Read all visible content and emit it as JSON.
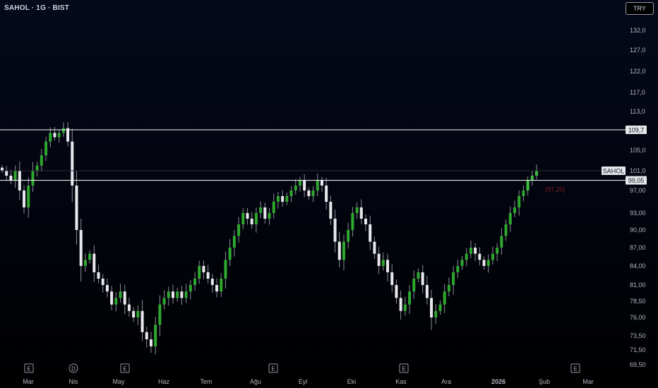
{
  "header": {
    "symbol_title": "SAHOL · 1G · BIST",
    "currency_button": "TRY"
  },
  "colors": {
    "up": "#2ea82e",
    "up_bright": "#3cc03c",
    "down": "#e8e8ec",
    "wick": "#8a8e99",
    "hline": "#ffffff",
    "axis_text": "#b2b5be",
    "tag_bg": "#e6e7ea",
    "ghost_label": "#7a1f2c"
  },
  "chart_data": {
    "type": "candlestick",
    "symbol": "SAHOL",
    "interval": "1G",
    "exchange": "BIST",
    "currency": "TRY",
    "y_ticks": [
      "69,50",
      "71,50",
      "73,50",
      "76,00",
      "78,50",
      "81,00",
      "84,00",
      "87,00",
      "90,00",
      "93,00",
      "97,00",
      "101,0",
      "105,0",
      "109,7",
      "113,0",
      "117,0",
      "122,0",
      "127,0",
      "132,0"
    ],
    "x_ticks": [
      "Mar",
      "Nis",
      "May",
      "Haz",
      "Tem",
      "Ağu",
      "Eyl",
      "Eki",
      "Kas",
      "Ara",
      "2026",
      "Şub",
      "Mar"
    ],
    "event_markers": [
      {
        "letter": "E",
        "at": "Mar"
      },
      {
        "letter": "D",
        "at": "Nis"
      },
      {
        "letter": "E",
        "at": "May"
      },
      {
        "letter": "E",
        "at": "Ağu"
      },
      {
        "letter": "E",
        "at": "Kas"
      },
      {
        "letter": "E",
        "at": "Şub"
      }
    ],
    "horizontal_lines": [
      {
        "price": 109.7,
        "label": "109,7"
      },
      {
        "price": 99.05,
        "label": "99,05"
      }
    ],
    "price_tags": [
      {
        "name": "SAHOL",
        "price": 101.0
      },
      {
        "name": "ghost",
        "label": "(97,20)",
        "price": 97.2
      }
    ],
    "closes": [
      101,
      100,
      99,
      101,
      97,
      94,
      98,
      101,
      102,
      104,
      107,
      109,
      108,
      109,
      110,
      107,
      98,
      90,
      84,
      85,
      86,
      83,
      82,
      81,
      80,
      78,
      79,
      80,
      78,
      77,
      76,
      77,
      74,
      73,
      72,
      75,
      78,
      79,
      80,
      79,
      80,
      79,
      80,
      81,
      82,
      84,
      83,
      82,
      81,
      80,
      82,
      85,
      87,
      89,
      91,
      93,
      92,
      91,
      93,
      94,
      92,
      93,
      95,
      96,
      95,
      96,
      97,
      98,
      99,
      97,
      96,
      97,
      99,
      98,
      95,
      92,
      88,
      85,
      88,
      90,
      93,
      94,
      92,
      91,
      88,
      86,
      84,
      85,
      83,
      81,
      79,
      77,
      78,
      80,
      82,
      83,
      81,
      79,
      76,
      77,
      78,
      80,
      81,
      83,
      84,
      85,
      86,
      87,
      86,
      85,
      84,
      85,
      86,
      87,
      89,
      91,
      93,
      94,
      96,
      97,
      99,
      100,
      101
    ]
  }
}
